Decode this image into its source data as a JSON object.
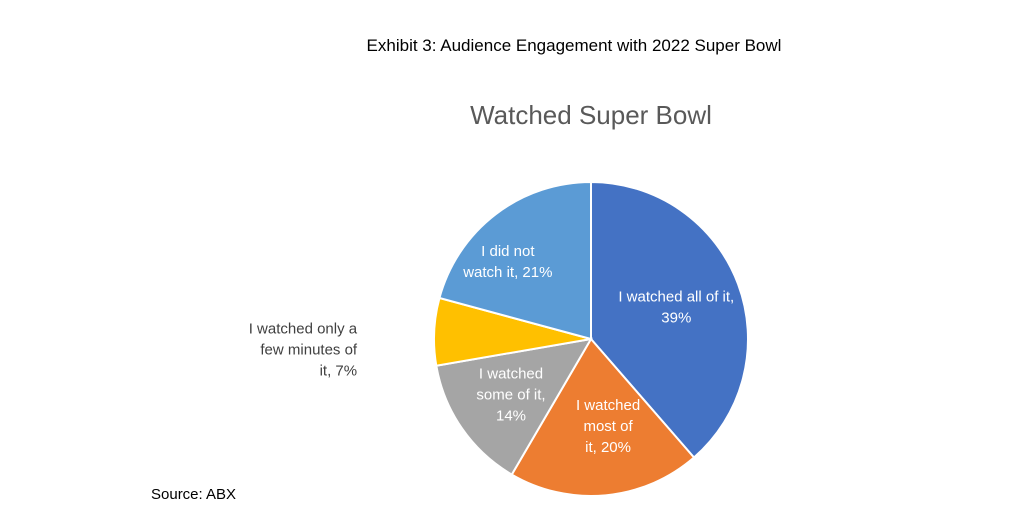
{
  "exhibit_title": "Exhibit 3:  Audience Engagement with 2022 Super Bowl",
  "source": "Source:  ABX",
  "chart_data": {
    "type": "pie",
    "title": "Watched Super Bowl",
    "start_angle_deg": 0,
    "direction": "clockwise",
    "slices": [
      {
        "label": [
          "I watched all of it,",
          "39%"
        ],
        "value": 39,
        "color": "#4472C4",
        "label_position": "inside"
      },
      {
        "label": [
          "I watched",
          "most of",
          "it, 20%"
        ],
        "value": 20,
        "color": "#ED7D31",
        "label_position": "inside"
      },
      {
        "label": [
          "I watched",
          "some of it,",
          "14%"
        ],
        "value": 14,
        "color": "#A5A5A5",
        "label_position": "inside"
      },
      {
        "label": [
          "I watched only a",
          "few minutes of",
          "it, 7%"
        ],
        "value": 7,
        "color": "#FFC000",
        "label_position": "outside"
      },
      {
        "label": [
          "I did not",
          "watch it, 21%"
        ],
        "value": 21,
        "color": "#5B9BD5",
        "label_position": "inside"
      }
    ]
  }
}
